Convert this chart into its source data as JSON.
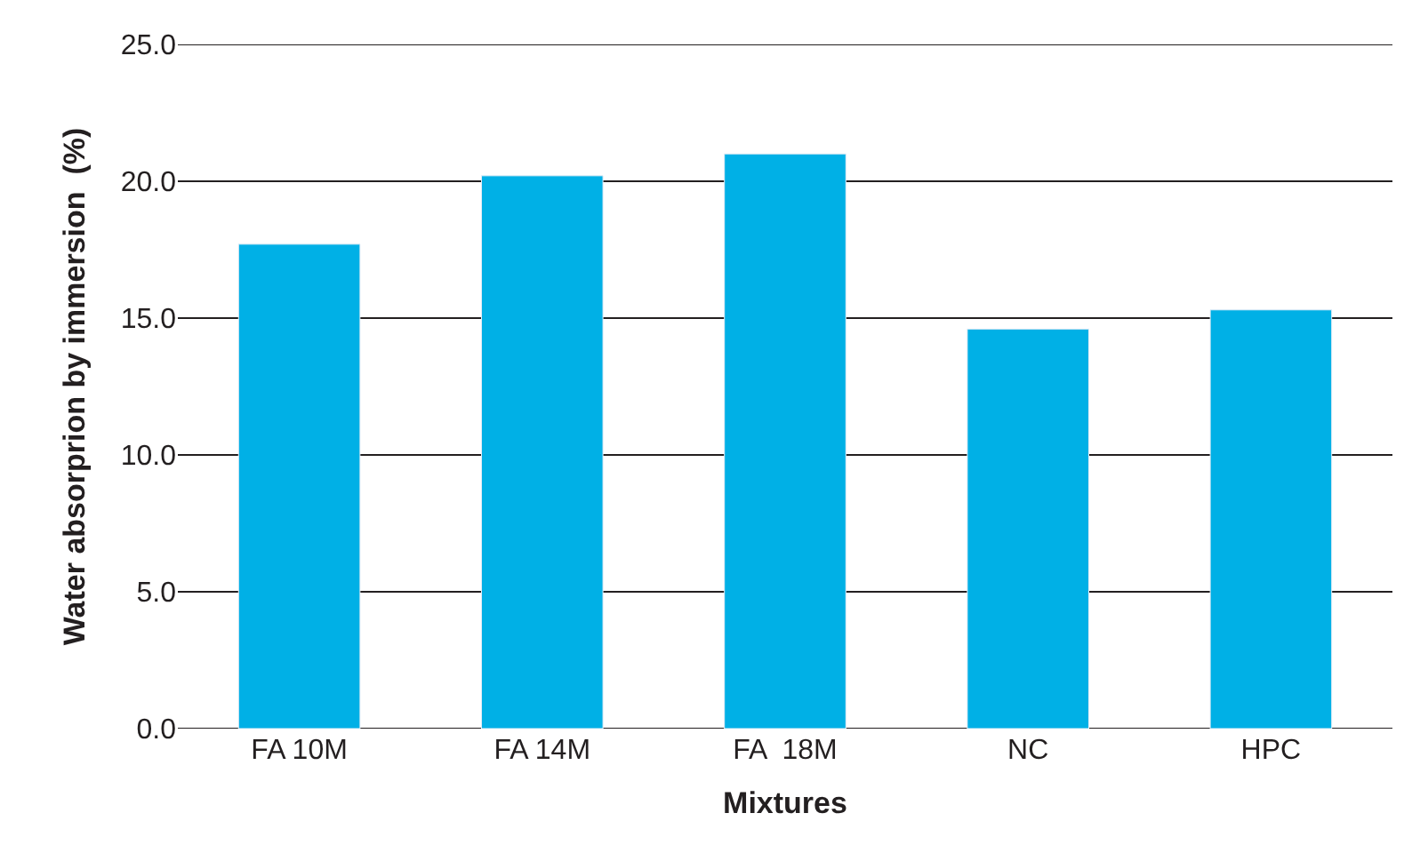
{
  "chart_data": {
    "type": "bar",
    "xlabel": "Mixtures",
    "ylabel": "Water absorprion by immersion  (%)",
    "categories": [
      "FA 10M",
      "FA 14M",
      "FA  18M",
      "NC",
      "HPC"
    ],
    "values": [
      17.7,
      20.2,
      21.0,
      14.6,
      15.3
    ],
    "color": "#00b0e6",
    "ylim": [
      0,
      25
    ],
    "yticks": [
      {
        "value": 0,
        "label": "0.0"
      },
      {
        "value": 5,
        "label": "5.0"
      },
      {
        "value": 10,
        "label": "10.0"
      },
      {
        "value": 15,
        "label": "15.0"
      },
      {
        "value": 20,
        "label": "20.0"
      },
      {
        "value": 25,
        "label": "25.0"
      }
    ],
    "grid": "y"
  }
}
